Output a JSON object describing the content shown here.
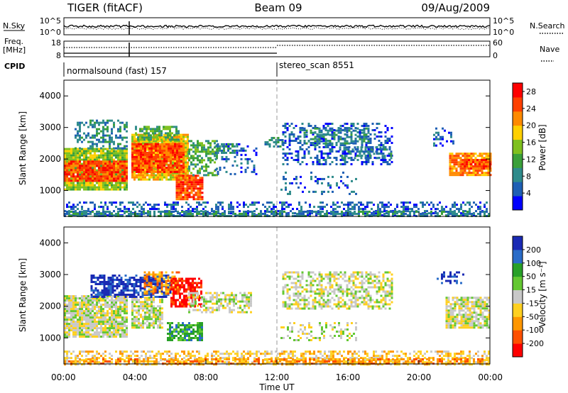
{
  "header": {
    "station": "TIGER (fitACF)",
    "beam": "Beam 09",
    "date": "09/Aug/2009"
  },
  "panel_labels": {
    "nsky": "N.Sky",
    "nsearch": "N.Search",
    "freq": "Freq.",
    "freq_unit": "[MHz]",
    "nave": "Nave",
    "cpid": "CPID"
  },
  "mini_ticks": {
    "nsky_top": "10^5",
    "nsky_bottom": "10^0",
    "nsearch_top": "10^5",
    "nsearch_bottom": "10^0",
    "freq_top": "18",
    "freq_bottom": "8",
    "nave_top": "60",
    "nave_bottom": "0"
  },
  "cpid_segments": [
    {
      "label": "normalsound (fast) 157",
      "start_hour": 0
    },
    {
      "label": "stereo_scan 8551",
      "start_hour": 12.0
    }
  ],
  "chart_data": [
    {
      "type": "heatmap",
      "name": "power",
      "ylabel": "Slant Range [km]",
      "xlabel": "",
      "xlim_hours": [
        0,
        24
      ],
      "ylim": [
        180,
        4500
      ],
      "y_ticks": [
        1000,
        2000,
        3000,
        4000
      ],
      "x_ticks": [
        "00:00",
        "04:00",
        "08:00",
        "12:00",
        "16:00",
        "20:00",
        "00:00"
      ],
      "colorbar": {
        "label": "Power [dB]",
        "ticks": [
          4,
          8,
          12,
          16,
          20,
          24,
          28
        ],
        "range": [
          0,
          30
        ],
        "colors": [
          "#0000ff",
          "#1e5fb4",
          "#2e8b8b",
          "#3aa03a",
          "#7fc01e",
          "#ffd000",
          "#ff8a00",
          "#ff4000",
          "#ff0000"
        ]
      },
      "regions": [
        {
          "t0": 0.0,
          "t1": 3.5,
          "r0": 1050,
          "r1": 2350,
          "level": 4,
          "density": 0.93
        },
        {
          "t0": 0.0,
          "t1": 3.5,
          "r0": 1300,
          "r1": 1950,
          "level": 7,
          "density": 0.9
        },
        {
          "t0": 0.6,
          "t1": 3.5,
          "r0": 2350,
          "r1": 3250,
          "level": 2,
          "density": 0.45
        },
        {
          "t0": 3.8,
          "t1": 7.0,
          "r0": 1350,
          "r1": 2800,
          "level": 5,
          "density": 0.93
        },
        {
          "t0": 3.8,
          "t1": 6.8,
          "r0": 1600,
          "r1": 2500,
          "level": 7,
          "density": 0.9
        },
        {
          "t0": 4.0,
          "t1": 6.5,
          "r0": 2600,
          "r1": 3050,
          "level": 3,
          "density": 0.6
        },
        {
          "t0": 6.3,
          "t1": 7.8,
          "r0": 700,
          "r1": 1500,
          "level": 7,
          "density": 0.85
        },
        {
          "t0": 7.0,
          "t1": 8.6,
          "r0": 1500,
          "r1": 2600,
          "level": 3,
          "density": 0.55
        },
        {
          "t0": 8.5,
          "t1": 10.8,
          "r0": 1500,
          "r1": 2500,
          "level": 1,
          "density": 0.22
        },
        {
          "t0": 8.6,
          "t1": 9.8,
          "r0": 2200,
          "r1": 2500,
          "level": 2,
          "density": 0.5
        },
        {
          "t0": 11.3,
          "t1": 12.3,
          "r0": 2400,
          "r1": 2700,
          "level": 2,
          "density": 0.55
        },
        {
          "t0": 12.3,
          "t1": 18.5,
          "r0": 1800,
          "r1": 3150,
          "level": 1,
          "density": 0.35
        },
        {
          "t0": 13.5,
          "t1": 17.2,
          "r0": 2500,
          "r1": 3000,
          "level": 2,
          "density": 0.45
        },
        {
          "t0": 12.2,
          "t1": 16.5,
          "r0": 900,
          "r1": 1600,
          "level": 1,
          "density": 0.22
        },
        {
          "t0": 15.5,
          "t1": 18.5,
          "r0": 2000,
          "r1": 2400,
          "level": 2,
          "density": 0.45
        },
        {
          "t0": 21.7,
          "t1": 24.0,
          "r0": 1500,
          "r1": 2200,
          "level": 6,
          "density": 0.85
        },
        {
          "t0": 22.4,
          "t1": 24.0,
          "r0": 1700,
          "r1": 2000,
          "level": 7,
          "density": 0.85
        },
        {
          "t0": 20.8,
          "t1": 22.0,
          "r0": 2400,
          "r1": 3000,
          "level": 1,
          "density": 0.3
        },
        {
          "t0": 0.0,
          "t1": 24.0,
          "r0": 180,
          "r1": 650,
          "level": 1,
          "density": 0.4
        },
        {
          "t0": 0.0,
          "t1": 24.0,
          "r0": 180,
          "r1": 360,
          "level": 2,
          "density": 0.6
        }
      ]
    },
    {
      "type": "heatmap",
      "name": "velocity",
      "ylabel": "Slant Range [km]",
      "xlabel": "Time UT",
      "xlim_hours": [
        0,
        24
      ],
      "ylim": [
        180,
        4500
      ],
      "y_ticks": [
        1000,
        2000,
        3000,
        4000
      ],
      "x_ticks": [
        "00:00",
        "04:00",
        "08:00",
        "12:00",
        "16:00",
        "20:00",
        "00:00"
      ],
      "colorbar": {
        "label": "Velocity [m s⁻¹]",
        "ticks": [
          "200",
          "100",
          "50",
          "15",
          "-15",
          "-50",
          "-100",
          "-200"
        ],
        "range": [
          -250,
          250
        ],
        "colors": [
          "#ff0000",
          "#ff5000",
          "#ff9600",
          "#ffd020",
          "#c8c8c8",
          "#64c832",
          "#28a028",
          "#2a6cc8",
          "#1a2ab4"
        ]
      },
      "regions": [
        {
          "t0": 0.0,
          "t1": 3.5,
          "r0": 1050,
          "r1": 2350,
          "level": 4,
          "density": 0.9
        },
        {
          "t0": 3.8,
          "t1": 5.5,
          "r0": 1350,
          "r1": 2300,
          "level": 4,
          "density": 0.75
        },
        {
          "t0": 1.5,
          "t1": 6.0,
          "r0": 2300,
          "r1": 3000,
          "level": 8,
          "density": 0.7
        },
        {
          "t0": 4.5,
          "t1": 6.5,
          "r0": 2400,
          "r1": 3100,
          "level": 2,
          "density": 0.6
        },
        {
          "t0": 6.0,
          "t1": 7.8,
          "r0": 2000,
          "r1": 2900,
          "level": 0,
          "density": 0.65
        },
        {
          "t0": 5.8,
          "t1": 7.8,
          "r0": 900,
          "r1": 1500,
          "level": 6,
          "density": 0.7
        },
        {
          "t0": 7.0,
          "t1": 10.5,
          "r0": 1800,
          "r1": 2450,
          "level": 4,
          "density": 0.55
        },
        {
          "t0": 12.3,
          "t1": 18.5,
          "r0": 1900,
          "r1": 3100,
          "level": 4,
          "density": 0.5
        },
        {
          "t0": 12.2,
          "t1": 16.5,
          "r0": 900,
          "r1": 1500,
          "level": 4,
          "density": 0.3
        },
        {
          "t0": 21.5,
          "t1": 24.0,
          "r0": 1300,
          "r1": 2300,
          "level": 4,
          "density": 0.8
        },
        {
          "t0": 21.0,
          "t1": 22.5,
          "r0": 2700,
          "r1": 3100,
          "level": 8,
          "density": 0.3
        },
        {
          "t0": 0.0,
          "t1": 24.0,
          "r0": 180,
          "r1": 600,
          "level": 3,
          "density": 0.5
        },
        {
          "t0": 0.0,
          "t1": 24.0,
          "r0": 180,
          "r1": 360,
          "level": 2,
          "density": 0.55
        }
      ]
    }
  ]
}
